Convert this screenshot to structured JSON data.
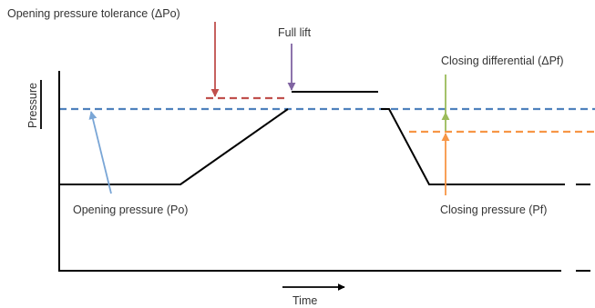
{
  "labels": {
    "opening_pressure_tolerance": "Opening pressure tolerance (ΔPo)",
    "full_lift": "Full lift",
    "closing_differential": "Closing differential (ΔPf)",
    "y_axis": "Pressure",
    "opening_pressure": "Opening pressure (Po)",
    "closing_pressure": "Closing pressure (Pf)",
    "x_axis": "Time"
  },
  "colors": {
    "text": "#333333",
    "curve": "#000000",
    "opening_tolerance": "#c0504d",
    "full_lift": "#8064a2",
    "closing_differential": "#9bbb59",
    "opening_pressure_line": "#4f81bd",
    "closing_pressure_line": "#f79646",
    "opening_pressure_pointer": "#7aa6d6"
  }
}
